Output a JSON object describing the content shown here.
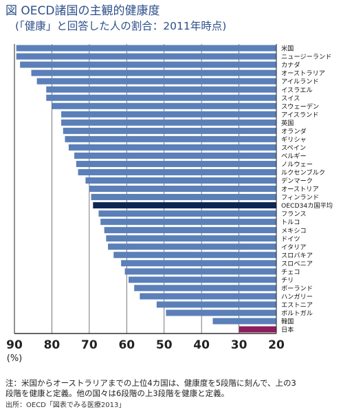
{
  "title": "図  OECD諸国の主観的健康度",
  "subtitle": "(「健康」と回答した人の割合：2011年時点)",
  "notes": [
    "注：米国からオーストラリアまでの上位4カ国は、健康度を5段階に刻んで、上の3",
    "段階を健康と定義。他の国々は6段階の上3段階を健康と定義。"
  ],
  "source": "出所：OECD「図表でみる医療2013」",
  "colors": {
    "bar": "#5b7fb8",
    "average": "#0d2653",
    "japan": "#8c1f5a",
    "title": "#2d4f8a"
  },
  "chart_data": {
    "type": "bar",
    "orientation": "horizontal",
    "axis_direction": "reversed",
    "xlim": [
      20,
      90
    ],
    "xticks": [
      "90",
      "80",
      "70",
      "60",
      "50",
      "40",
      "30",
      "20"
    ],
    "xlabel": "(%)",
    "gridlines": true,
    "categories": [
      "米国",
      "ニュージーランド",
      "カナダ",
      "オーストラリア",
      "アイルランド",
      "イスラエル",
      "スイス",
      "スウェーデン",
      "アイスランド",
      "英国",
      "オランダ",
      "ギリシャ",
      "スペイン",
      "ベルギー",
      "ノルウェー",
      "ルクセンブルク",
      "デンマーク",
      "オーストリア",
      "フィンランド",
      "OECD34カ国平均",
      "フランス",
      "トルコ",
      "メキシコ",
      "ドイツ",
      "イタリア",
      "スロバキア",
      "スロベニア",
      "チェコ",
      "チリ",
      "ポーランド",
      "ハンガリー",
      "エストニア",
      "ポルトガル",
      "韓国",
      "日本"
    ],
    "values": [
      89.5,
      89.5,
      88.5,
      85.5,
      84,
      81.5,
      81.5,
      80,
      77.5,
      77.5,
      77,
      76.5,
      75.5,
      74,
      73.5,
      73,
      71,
      70,
      69.5,
      69,
      67.5,
      67,
      66,
      65.5,
      65,
      63.5,
      61.5,
      60.5,
      59.5,
      58,
      56.5,
      52,
      49.5,
      37,
      30
    ],
    "highlight": {
      "OECD34カ国平均": "average",
      "日本": "japan"
    }
  }
}
